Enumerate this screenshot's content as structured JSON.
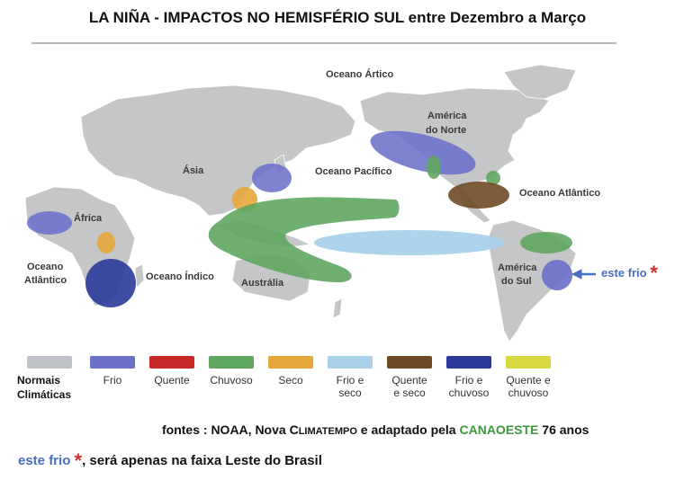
{
  "title": "LA NIÑA - IMPACTOS NO HEMISFÉRIO SUL entre Dezembro a Março",
  "map_labels": {
    "oceano_artico": "Oceano Ártico",
    "america_norte_1": "América",
    "america_norte_2": "do Norte",
    "asia": "Ásia",
    "oceano_pacifico": "Oceano Pacífico",
    "oceano_atlantico_n": "Oceano Atlântico",
    "africa": "África",
    "oceano_atlantico_s_1": "Oceano",
    "oceano_atlantico_s_2": "Atlântico",
    "oceano_indico": "Oceano Índico",
    "australia": "Austrália",
    "america_sul_1": "América",
    "america_sul_2": "do Sul"
  },
  "side_note": {
    "text": "este frio",
    "star": "*"
  },
  "legend": {
    "normais_1": "Normais",
    "normais_2": "Climáticas",
    "items": [
      {
        "label_1": "Frio",
        "label_2": "",
        "color": "#6b72c8"
      },
      {
        "label_1": "Quente",
        "label_2": "",
        "color": "#c62828"
      },
      {
        "label_1": "Chuvoso",
        "label_2": "",
        "color": "#5fa65f"
      },
      {
        "label_1": "Seco",
        "label_2": "",
        "color": "#e5a63a"
      },
      {
        "label_1": "Frio e",
        "label_2": "seco",
        "color": "#a9d2ea"
      },
      {
        "label_1": "Quente",
        "label_2": "e seco",
        "color": "#6e4a26"
      },
      {
        "label_1": "Frio e",
        "label_2": "chuvoso",
        "color": "#2b3a9b"
      },
      {
        "label_1": "Quente e",
        "label_2": "chuvoso",
        "color": "#d8d840"
      }
    ],
    "normais_color": "#bfc3c8"
  },
  "sources": {
    "prefix": "fontes : NOAA, Nova ",
    "clima_C": "C",
    "clima_rest": "LIMATEMPO",
    "middle": " e adaptado pela ",
    "org": "CANAOESTE",
    "suffix": " 76 anos"
  },
  "note": {
    "lead": "este frio",
    "star": "*",
    "rest": ", será apenas na faixa Leste do Brasil"
  }
}
